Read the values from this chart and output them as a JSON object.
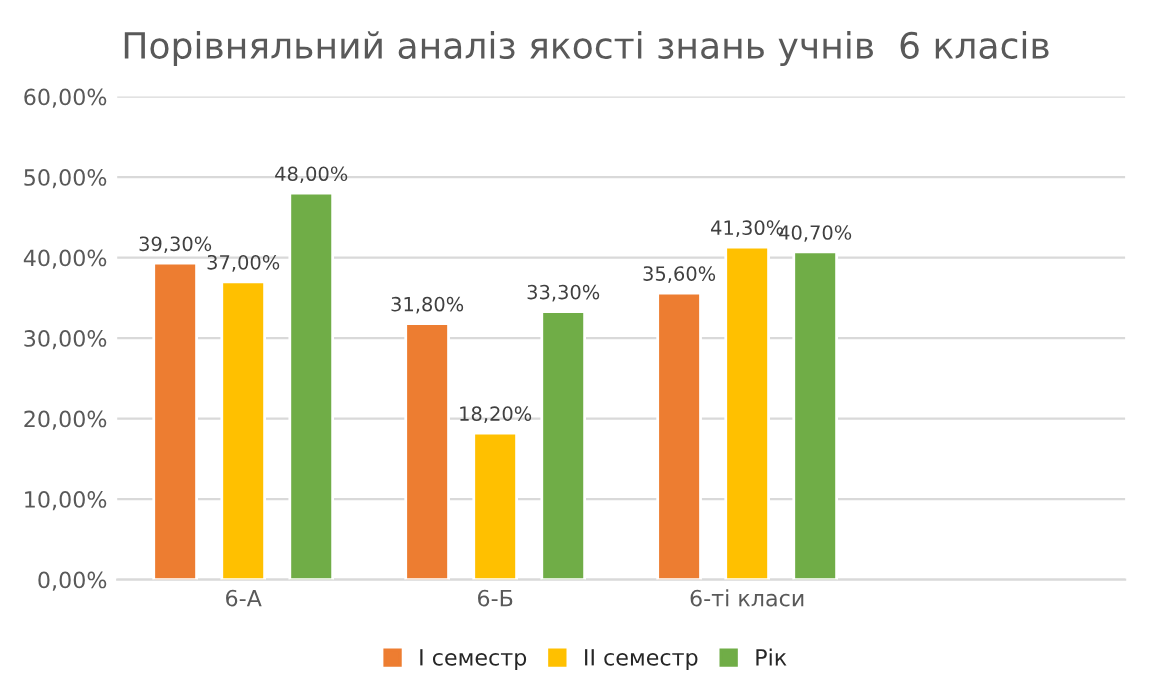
{
  "chart_data": {
    "type": "bar",
    "title": "Порівняльний аналіз якості знань учнів  6 класів",
    "categories": [
      "6-А",
      "6-Б",
      "6-ті класи",
      null
    ],
    "series": [
      {
        "name": "I семестр",
        "color": "#ed7d31",
        "values": [
          39.3,
          31.8,
          35.6,
          null
        ],
        "value_labels": [
          "39,30%",
          "31,80%",
          "35,60%",
          null
        ]
      },
      {
        "name": "II семестр",
        "color": "#ffc000",
        "values": [
          37.0,
          18.2,
          41.3,
          null
        ],
        "value_labels": [
          "37,00%",
          "18,20%",
          "41,30%",
          null
        ]
      },
      {
        "name": "Рік",
        "color": "#70ad47",
        "values": [
          48.0,
          33.3,
          40.7,
          null
        ],
        "value_labels": [
          "48,00%",
          "33,30%",
          "40,70%",
          null
        ]
      }
    ],
    "ylim": [
      0,
      60
    ],
    "yticks": [
      {
        "value": 0,
        "label": "0,00%"
      },
      {
        "value": 10,
        "label": "10,00%"
      },
      {
        "value": 20,
        "label": "20,00%"
      },
      {
        "value": 30,
        "label": "30,00%"
      },
      {
        "value": 40,
        "label": "40,00%"
      },
      {
        "value": 50,
        "label": "50,00%"
      },
      {
        "value": 60,
        "label": "60,00%"
      }
    ],
    "grid": "y",
    "legend": "bottom"
  }
}
